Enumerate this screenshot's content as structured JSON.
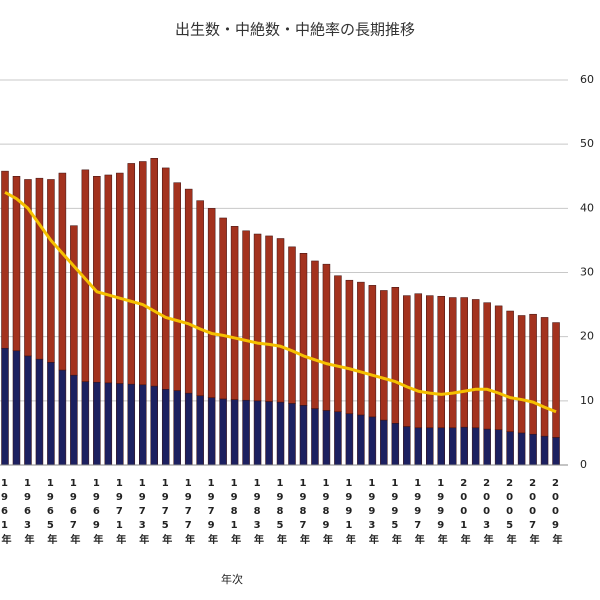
{
  "chart_data": {
    "type": "bar",
    "stacked": true,
    "title": "出生数・中絶数・中絶率の長期推移",
    "x_label": "年次",
    "categories": [
      "1961年",
      null,
      "1963年",
      null,
      "1965年",
      null,
      "1967年",
      null,
      "1969年",
      null,
      "1971年",
      null,
      "1973年",
      null,
      "1975年",
      null,
      "1977年",
      null,
      "1979年",
      null,
      "1981年",
      null,
      "1983年",
      null,
      "1985年",
      null,
      "1987年",
      null,
      "1989年",
      null,
      "1991年",
      null,
      "1993年",
      null,
      "1995年",
      null,
      "1997年",
      null,
      "1999年",
      null,
      "2001年",
      null,
      "2003年",
      null,
      "2005年",
      null,
      "2007年",
      null,
      "2009年"
    ],
    "series": [
      {
        "color": "#1c2060",
        "values": [
          18.2,
          17.8,
          17,
          16.5,
          16,
          14.8,
          14,
          13,
          12.9,
          12.8,
          12.7,
          12.6,
          12.5,
          12.3,
          11.8,
          11.6,
          11.2,
          10.8,
          10.5,
          10.3,
          10.2,
          10.1,
          10,
          9.9,
          9.8,
          9.6,
          9.3,
          8.8,
          8.5,
          8.3,
          8,
          7.8,
          7.5,
          7,
          6.5,
          6,
          5.8,
          5.8,
          5.8,
          5.8,
          5.9,
          5.8,
          5.6,
          5.5,
          5.2,
          5,
          4.8,
          4.5,
          4.3
        ]
      },
      {
        "color": "#a3321e",
        "values": [
          27.6,
          27.2,
          27.5,
          28.2,
          28.5,
          30.7,
          23.3,
          33,
          32.1,
          32.4,
          32.8,
          34.4,
          34.8,
          35.5,
          34.5,
          32.4,
          31.8,
          30.4,
          29.5,
          28.2,
          27,
          26.4,
          26,
          25.8,
          25.5,
          24.4,
          23.7,
          23,
          22.8,
          21.2,
          20.8,
          20.7,
          20.5,
          20.2,
          21.2,
          20.4,
          20.9,
          20.6,
          20.5,
          20.3,
          20.2,
          20,
          19.7,
          19.3,
          18.8,
          18.3,
          18.7,
          18.5,
          17.9
        ]
      },
      {
        "type": "line",
        "color": "#f5c000",
        "values": [
          42.5,
          41.5,
          40,
          37.5,
          35,
          33,
          31,
          29,
          27,
          26.5,
          26,
          25.5,
          25,
          24,
          23,
          22.5,
          22,
          21.2,
          20.5,
          20.2,
          19.8,
          19.4,
          19,
          18.8,
          18.5,
          17.8,
          17,
          16.4,
          15.8,
          15.4,
          15,
          14.5,
          14,
          13.5,
          13,
          12.2,
          11.5,
          11.2,
          11,
          11.2,
          11.5,
          11.8,
          11.8,
          11.2,
          10.5,
          10.2,
          9.8,
          9,
          8.3
        ]
      }
    ],
    "ylim": [
      0,
      60
    ],
    "yticks": [
      0,
      10,
      20,
      30,
      40,
      50,
      60
    ],
    "grid": true,
    "y_axis_side": "right"
  }
}
